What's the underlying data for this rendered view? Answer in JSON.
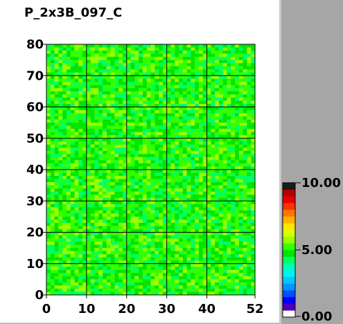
{
  "chart_data": {
    "type": "heatmap",
    "title": "P_2x3B_097_C",
    "xlabel": "",
    "ylabel": "",
    "xlim": [
      0,
      52
    ],
    "ylim": [
      0,
      80
    ],
    "x_ticks": [
      0,
      10,
      20,
      30,
      40,
      52
    ],
    "y_ticks": [
      0,
      10,
      20,
      30,
      40,
      50,
      60,
      70,
      80
    ],
    "x_tick_labels": [
      "0",
      "10",
      "20",
      "30",
      "40",
      "52"
    ],
    "y_tick_labels": [
      "0",
      "10",
      "20",
      "30",
      "40",
      "50",
      "60",
      "70",
      "80"
    ],
    "grid": true,
    "cells": {
      "cols": 52,
      "rows": 80,
      "value_range": [
        4.2,
        5.8
      ],
      "typical_value": 5.0,
      "note": "uniform field of values near 5.00 (green/cyan)"
    },
    "colorbar": {
      "min": 0.0,
      "max": 10.0,
      "tick_labels": [
        "10.00",
        "5.00",
        "0.00"
      ],
      "colors": [
        "#ffffff",
        "#4b00b4",
        "#0000ff",
        "#0050ff",
        "#0096ff",
        "#00c8ff",
        "#00f0f0",
        "#00ffb4",
        "#00ff64",
        "#00e600",
        "#32ff00",
        "#96ff00",
        "#dcff00",
        "#ffe600",
        "#ffb400",
        "#ff7800",
        "#ff3200",
        "#e60000",
        "#b40000",
        "#1a1a1a"
      ]
    }
  }
}
